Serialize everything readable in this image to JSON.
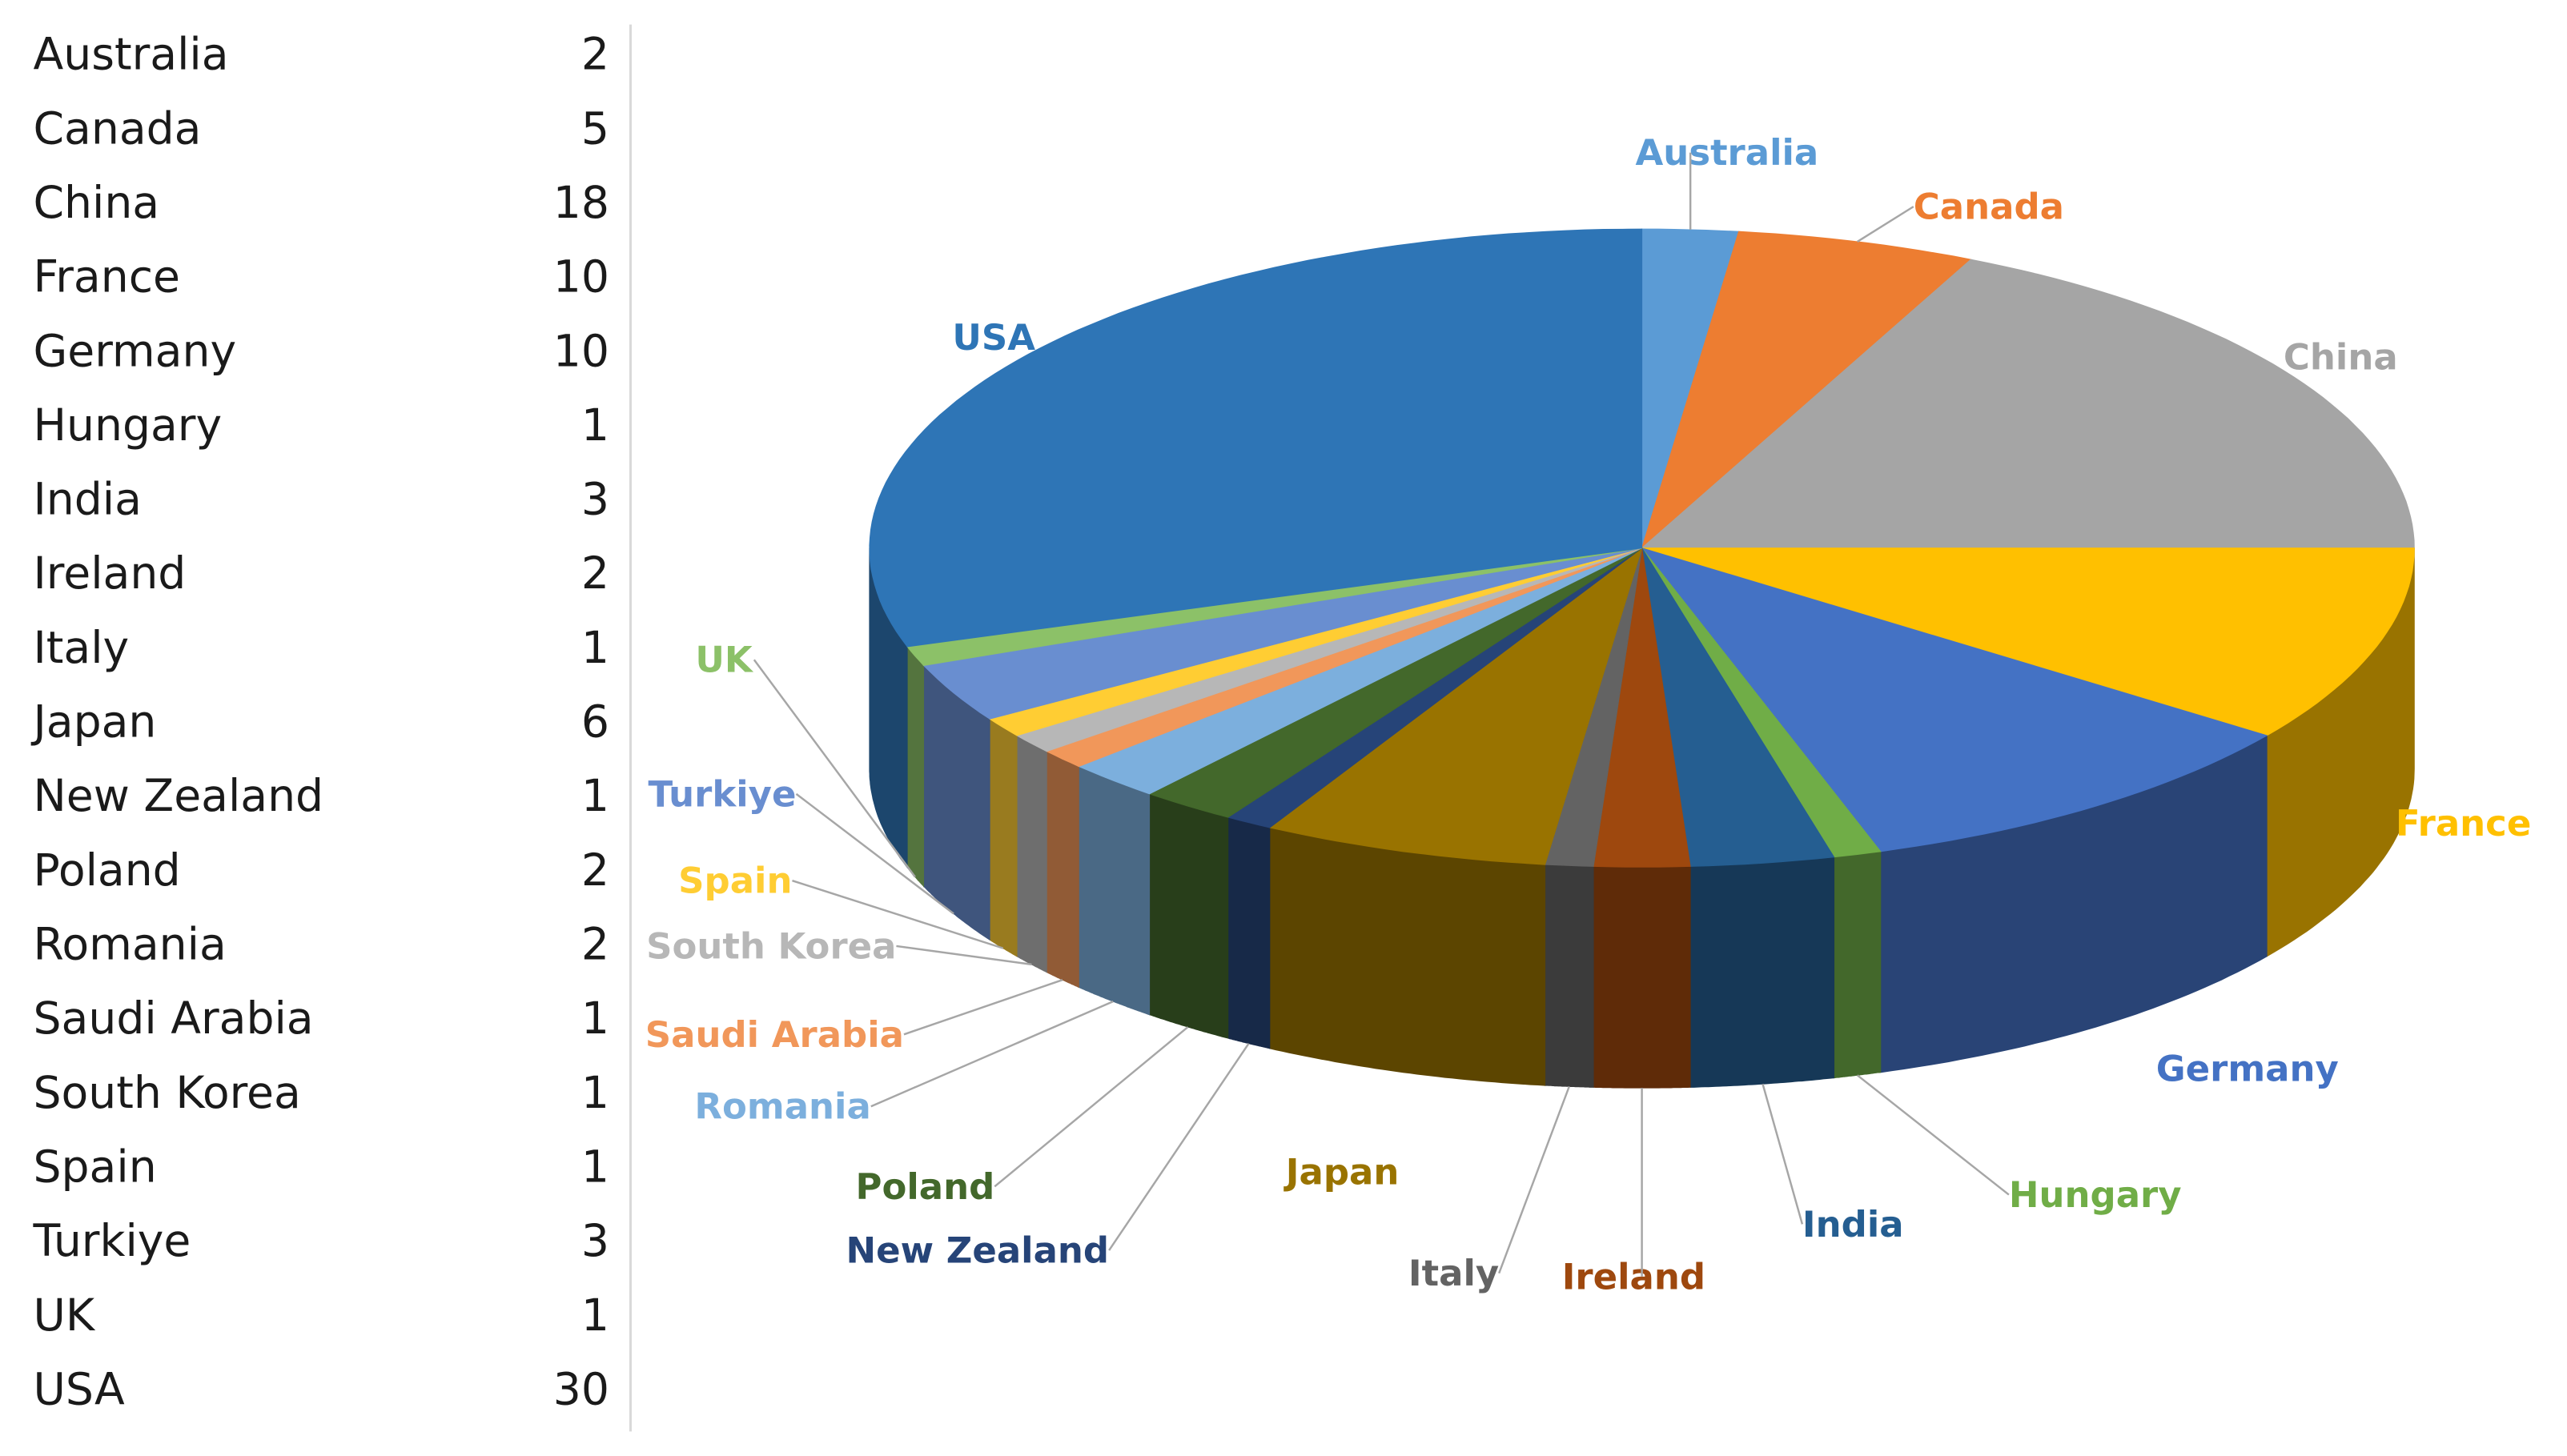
{
  "chart_data": {
    "type": "pie",
    "categories": [
      "Australia",
      "Canada",
      "China",
      "France",
      "Germany",
      "Hungary",
      "India",
      "Ireland",
      "Italy",
      "Japan",
      "New Zealand",
      "Poland",
      "Romania",
      "Saudi Arabia",
      "South Korea",
      "Spain",
      "Turkiye",
      "UK",
      "USA"
    ],
    "values": [
      2,
      5,
      18,
      10,
      10,
      1,
      3,
      2,
      1,
      6,
      1,
      2,
      2,
      1,
      1,
      1,
      3,
      1,
      30
    ],
    "colors": [
      "#5b9bd5",
      "#ed7d31",
      "#a5a5a5",
      "#ffc000",
      "#4472c4",
      "#70ad47",
      "#255e91",
      "#9e480e",
      "#636363",
      "#997300",
      "#264478",
      "#43682b",
      "#7cafdd",
      "#f1975a",
      "#b7b7b7",
      "#ffcd33",
      "#698ed0",
      "#8cc168",
      "#2e75b6"
    ]
  }
}
